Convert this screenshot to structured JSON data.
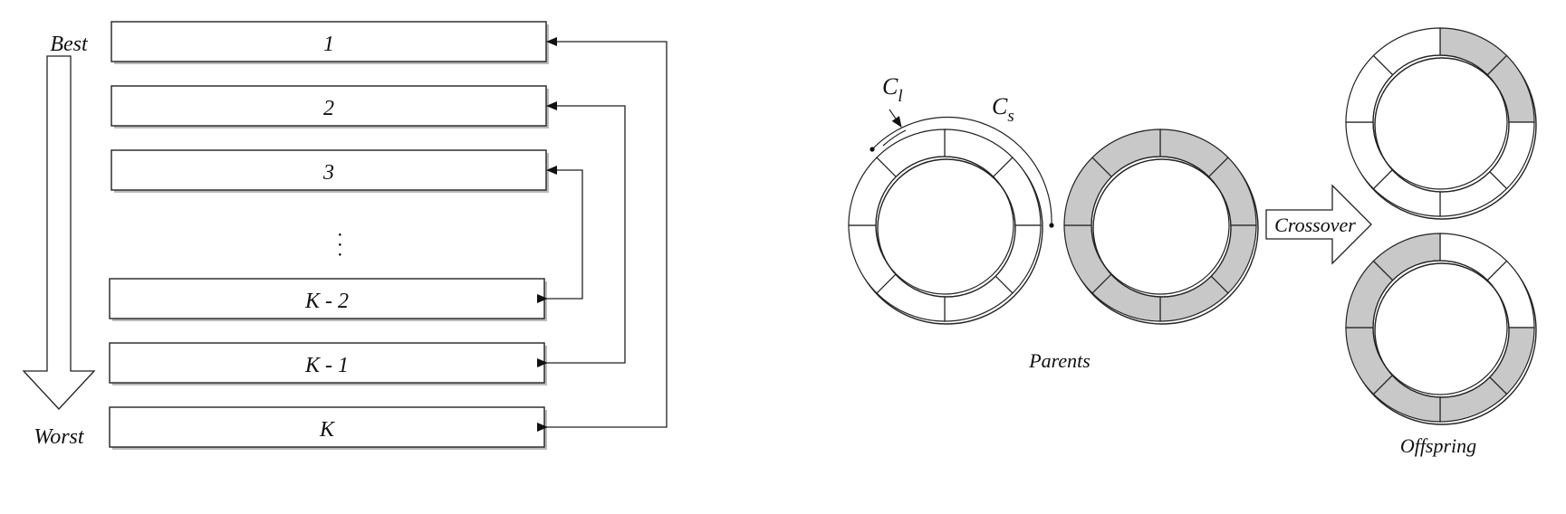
{
  "colors": {
    "stroke": "#222222",
    "filled_segment": "#c8c8c8",
    "background": "#ffffff"
  },
  "ranking": {
    "best_label": "Best",
    "worst_label": "Worst",
    "boxes": [
      "1",
      "2",
      "3",
      "K - 2",
      "K - 1",
      "K"
    ],
    "ellipsis": "· · ·"
  },
  "crossover": {
    "cl_label": "C",
    "cl_sub": "l",
    "cs_label": "C",
    "cs_sub": "s",
    "parents_label": "Parents",
    "arrow_label": "Crossover",
    "offspring_label": "Offspring",
    "parent1_filled": [
      false,
      false,
      false,
      false,
      false,
      false,
      false,
      false
    ],
    "parent2_filled": [
      true,
      true,
      true,
      true,
      true,
      true,
      true,
      true
    ],
    "offspring1_filled": [
      true,
      true,
      false,
      false,
      false,
      false,
      false,
      false
    ],
    "offspring2_filled": [
      false,
      false,
      true,
      true,
      true,
      true,
      true,
      true
    ]
  }
}
